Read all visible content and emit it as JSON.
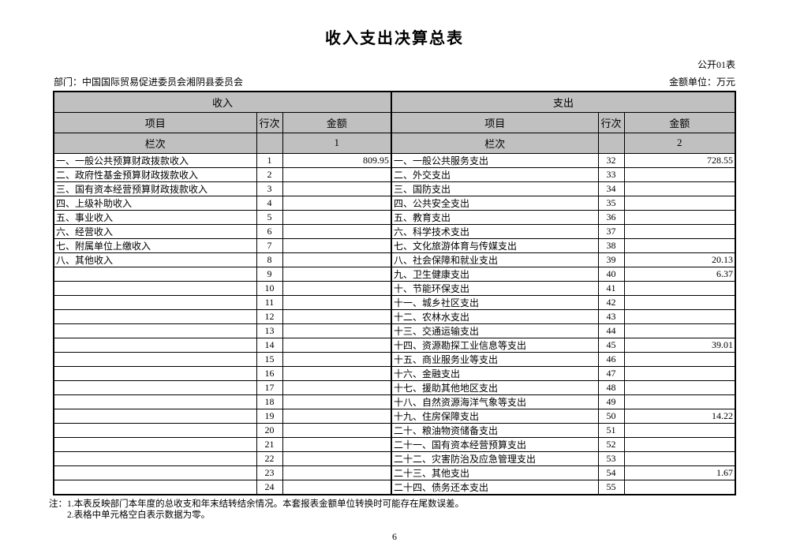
{
  "page": {
    "title": "收入支出决算总表",
    "table_code": "公开01表",
    "department_label": "部门：中国国际贸易促进委员会湘阴县委员会",
    "unit_label": "金额单位：万元",
    "notes": [
      "注：1.本表反映部门本年度的总收支和年末结转结余情况。本套报表金额单位转换时可能存在尾数误差。",
      "2.表格中单元格空白表示数据为零。"
    ],
    "page_number": "6"
  },
  "table": {
    "income_header": "收入",
    "expense_header": "支出",
    "col_headers": {
      "item": "项目",
      "row_no": "行次",
      "amount": "金额"
    },
    "column_label": "栏次",
    "income_col_no": "1",
    "expense_col_no": "2",
    "header_bg_color": "#c0c0c0",
    "rows": [
      {
        "income_item": "一、一般公共预算财政拨款收入",
        "income_row": "1",
        "income_amount": "809.95",
        "expense_item": "一、一般公共服务支出",
        "expense_row": "32",
        "expense_amount": "728.55"
      },
      {
        "income_item": "二、政府性基金预算财政拨款收入",
        "income_row": "2",
        "income_amount": "",
        "expense_item": "二、外交支出",
        "expense_row": "33",
        "expense_amount": ""
      },
      {
        "income_item": "三、国有资本经营预算财政拨款收入",
        "income_row": "3",
        "income_amount": "",
        "expense_item": "三、国防支出",
        "expense_row": "34",
        "expense_amount": ""
      },
      {
        "income_item": "四、上级补助收入",
        "income_row": "4",
        "income_amount": "",
        "expense_item": "四、公共安全支出",
        "expense_row": "35",
        "expense_amount": ""
      },
      {
        "income_item": "五、事业收入",
        "income_row": "5",
        "income_amount": "",
        "expense_item": "五、教育支出",
        "expense_row": "36",
        "expense_amount": ""
      },
      {
        "income_item": "六、经营收入",
        "income_row": "6",
        "income_amount": "",
        "expense_item": "六、科学技术支出",
        "expense_row": "37",
        "expense_amount": ""
      },
      {
        "income_item": "七、附属单位上缴收入",
        "income_row": "7",
        "income_amount": "",
        "expense_item": "七、文化旅游体育与传媒支出",
        "expense_row": "38",
        "expense_amount": ""
      },
      {
        "income_item": "八、其他收入",
        "income_row": "8",
        "income_amount": "",
        "expense_item": "八、社会保障和就业支出",
        "expense_row": "39",
        "expense_amount": "20.13"
      },
      {
        "income_item": "",
        "income_row": "9",
        "income_amount": "",
        "expense_item": "九、卫生健康支出",
        "expense_row": "40",
        "expense_amount": "6.37"
      },
      {
        "income_item": "",
        "income_row": "10",
        "income_amount": "",
        "expense_item": "十、节能环保支出",
        "expense_row": "41",
        "expense_amount": ""
      },
      {
        "income_item": "",
        "income_row": "11",
        "income_amount": "",
        "expense_item": "十一、城乡社区支出",
        "expense_row": "42",
        "expense_amount": ""
      },
      {
        "income_item": "",
        "income_row": "12",
        "income_amount": "",
        "expense_item": "十二、农林水支出",
        "expense_row": "43",
        "expense_amount": ""
      },
      {
        "income_item": "",
        "income_row": "13",
        "income_amount": "",
        "expense_item": "十三、交通运输支出",
        "expense_row": "44",
        "expense_amount": ""
      },
      {
        "income_item": "",
        "income_row": "14",
        "income_amount": "",
        "expense_item": "十四、资源勘探工业信息等支出",
        "expense_row": "45",
        "expense_amount": "39.01"
      },
      {
        "income_item": "",
        "income_row": "15",
        "income_amount": "",
        "expense_item": "十五、商业服务业等支出",
        "expense_row": "46",
        "expense_amount": ""
      },
      {
        "income_item": "",
        "income_row": "16",
        "income_amount": "",
        "expense_item": "十六、金融支出",
        "expense_row": "47",
        "expense_amount": ""
      },
      {
        "income_item": "",
        "income_row": "17",
        "income_amount": "",
        "expense_item": "十七、援助其他地区支出",
        "expense_row": "48",
        "expense_amount": ""
      },
      {
        "income_item": "",
        "income_row": "18",
        "income_amount": "",
        "expense_item": "十八、自然资源海洋气象等支出",
        "expense_row": "49",
        "expense_amount": ""
      },
      {
        "income_item": "",
        "income_row": "19",
        "income_amount": "",
        "expense_item": "十九、住房保障支出",
        "expense_row": "50",
        "expense_amount": "14.22"
      },
      {
        "income_item": "",
        "income_row": "20",
        "income_amount": "",
        "expense_item": "二十、粮油物资储备支出",
        "expense_row": "51",
        "expense_amount": ""
      },
      {
        "income_item": "",
        "income_row": "21",
        "income_amount": "",
        "expense_item": "二十一、国有资本经营预算支出",
        "expense_row": "52",
        "expense_amount": ""
      },
      {
        "income_item": "",
        "income_row": "22",
        "income_amount": "",
        "expense_item": "二十二、灾害防治及应急管理支出",
        "expense_row": "53",
        "expense_amount": ""
      },
      {
        "income_item": "",
        "income_row": "23",
        "income_amount": "",
        "expense_item": "二十三、其他支出",
        "expense_row": "54",
        "expense_amount": "1.67"
      },
      {
        "income_item": "",
        "income_row": "24",
        "income_amount": "",
        "expense_item": "二十四、债务还本支出",
        "expense_row": "55",
        "expense_amount": ""
      }
    ]
  }
}
